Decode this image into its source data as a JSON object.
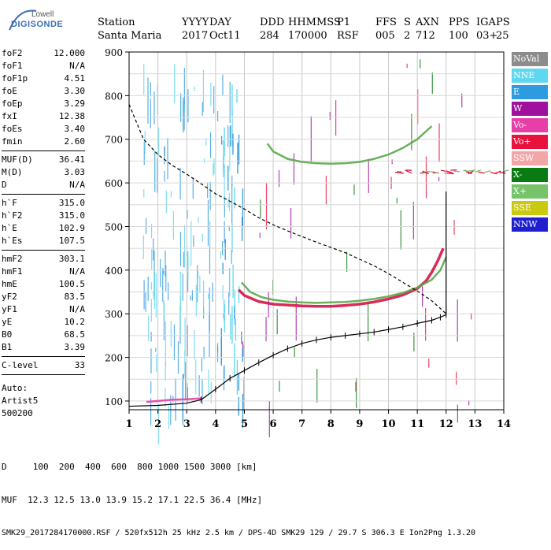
{
  "logo": {
    "brand": "Lowell",
    "product": "DIGISONDE"
  },
  "header": {
    "row1": [
      "Station",
      "YYYY",
      "DAY",
      "DDD",
      "HHMMSS",
      "P1",
      "FFS",
      "S",
      "AXN",
      "PPS",
      "IGA",
      "PS"
    ],
    "row2": [
      "Santa Maria",
      "2017",
      "Oct11",
      "284",
      "170000",
      "RSF",
      "005",
      "2",
      "712",
      "100",
      "03+",
      "25"
    ]
  },
  "params": {
    "g1": [
      {
        "label": "foF2",
        "value": "12.000"
      },
      {
        "label": "foF1",
        "value": "N/A"
      },
      {
        "label": "foF1p",
        "value": "4.51"
      },
      {
        "label": "foE",
        "value": "3.30"
      },
      {
        "label": "foEp",
        "value": "3.29"
      },
      {
        "label": "fxI",
        "value": "12.38"
      },
      {
        "label": "foEs",
        "value": "3.40"
      },
      {
        "label": "fmin",
        "value": "2.60"
      }
    ],
    "g2": [
      {
        "label": "MUF(D)",
        "value": "36.41"
      },
      {
        "label": "M(D)",
        "value": "3.03"
      },
      {
        "label": "D",
        "value": "N/A"
      }
    ],
    "g3": [
      {
        "label": "h`F",
        "value": "315.0"
      },
      {
        "label": "h`F2",
        "value": "315.0"
      },
      {
        "label": "h`E",
        "value": "102.9"
      },
      {
        "label": "h`Es",
        "value": "107.5"
      }
    ],
    "g4": [
      {
        "label": "hmF2",
        "value": "303.1"
      },
      {
        "label": "hmF1",
        "value": "N/A"
      },
      {
        "label": "hmE",
        "value": "100.5"
      },
      {
        "label": "yF2",
        "value": "83.5"
      },
      {
        "label": "yF1",
        "value": "N/A"
      },
      {
        "label": "yE",
        "value": "10.2"
      },
      {
        "label": "B0",
        "value": "68.5"
      },
      {
        "label": "B1",
        "value": "3.39"
      }
    ],
    "g5": [
      {
        "label": "C-level",
        "value": "33"
      }
    ]
  },
  "auto": {
    "line1": "Auto:",
    "line2": "Artist5",
    "line3": "500200"
  },
  "legend": [
    {
      "label": "NoVal",
      "color": "#8c8c8c"
    },
    {
      "label": "NNE",
      "color": "#5fd7f0"
    },
    {
      "label": "E",
      "color": "#2e9ae0"
    },
    {
      "label": "W",
      "color": "#a0109e"
    },
    {
      "label": "Vo-",
      "color": "#e83ea8"
    },
    {
      "label": "Vo+",
      "color": "#e8123c"
    },
    {
      "label": "SSW",
      "color": "#f2a6a6"
    },
    {
      "label": "X-",
      "color": "#0a7a12"
    },
    {
      "label": "X+",
      "color": "#76c36a"
    },
    {
      "label": "SSE",
      "color": "#c9c90f"
    },
    {
      "label": "NNW",
      "color": "#1f1fcf"
    }
  ],
  "footer": {
    "distances": "D     100  200  400  600  800 1000 1500 3000 [km]",
    "muf": "MUF  12.3 12.5 13.0 13.9 15.2 17.1 22.5 36.4 [MHz]",
    "file": "SMK29_2017284170000.RSF / 520fx512h 25 kHz 2.5 km / DPS-4D SMK29 129 / 29.7 S 306.3 E Ion2Png 1.3.20"
  },
  "chart_data": {
    "type": "scatter",
    "xlim": [
      1,
      14
    ],
    "ylim": [
      80,
      900
    ],
    "x_ticks": [
      1,
      2,
      3,
      4,
      5,
      6,
      7,
      8,
      9,
      10,
      11,
      12,
      13,
      14
    ],
    "y_ticks": [
      100,
      200,
      300,
      400,
      500,
      600,
      700,
      800,
      900
    ],
    "y_tick_labels": [
      "100",
      "200",
      "300",
      "400",
      "500",
      "600",
      "700",
      "800",
      "900"
    ],
    "x_tick_labels": [
      "1",
      "2",
      "3",
      "4",
      "5",
      "6",
      "7",
      "8",
      "9",
      "10",
      "11",
      "12",
      "13",
      "14"
    ],
    "grid": true,
    "profile_curve": {
      "x": [
        1.0,
        2.0,
        3.0,
        3.5,
        4.0,
        4.5,
        5.0,
        5.5,
        6.0,
        6.5,
        7.0,
        7.5,
        8.0,
        8.5,
        9.0,
        9.5,
        10.0,
        10.5,
        11.0,
        11.5,
        11.8,
        12.0
      ],
      "y": [
        88,
        90,
        95,
        103,
        127,
        152,
        170,
        188,
        205,
        220,
        232,
        240,
        246,
        250,
        254,
        258,
        264,
        270,
        278,
        285,
        292,
        298
      ]
    },
    "muf_curve": {
      "x": [
        1.0,
        1.5,
        2.0,
        2.5,
        3.0,
        3.5,
        4.0,
        4.5,
        5.0,
        5.5,
        6.0,
        6.5,
        7.0,
        7.5,
        8.0,
        8.5,
        9.0,
        9.5,
        10.0,
        10.5,
        11.0,
        11.5,
        12.0
      ],
      "y": [
        780,
        700,
        665,
        640,
        620,
        598,
        575,
        558,
        540,
        520,
        504,
        490,
        477,
        464,
        452,
        440,
        425,
        410,
        392,
        372,
        352,
        330,
        300
      ]
    },
    "traces": {
      "F_o": {
        "x": [
          4.8,
          5.0,
          5.5,
          6.0,
          6.5,
          7.0,
          7.5,
          8.0,
          8.5,
          9.0,
          9.5,
          10.0,
          10.5,
          11.0,
          11.3,
          11.5,
          11.7,
          11.9
        ],
        "y": [
          355,
          342,
          328,
          322,
          320,
          318,
          317,
          317,
          319,
          322,
          327,
          334,
          343,
          358,
          375,
          395,
          420,
          450
        ]
      },
      "F_x": {
        "x": [
          4.9,
          5.2,
          5.6,
          6.0,
          6.5,
          7.0,
          7.5,
          8.0,
          8.5,
          9.0,
          9.5,
          10.0,
          10.5,
          11.0,
          11.5,
          11.8,
          12.0
        ],
        "y": [
          372,
          350,
          338,
          332,
          328,
          326,
          325,
          326,
          327,
          330,
          334,
          340,
          348,
          360,
          378,
          400,
          430
        ]
      },
      "F2_hop": {
        "x": [
          5.8,
          6.0,
          6.5,
          7.0,
          7.5,
          8.0,
          8.5,
          9.0,
          9.5,
          10.0,
          10.5,
          11.0,
          11.5
        ],
        "y": [
          690,
          672,
          655,
          648,
          645,
          644,
          645,
          648,
          655,
          665,
          680,
          700,
          730
        ]
      },
      "sporadic_E": {
        "x": [
          1.6,
          2.0,
          2.5,
          3.0,
          3.5
        ],
        "y": [
          98,
          100,
          103,
          104,
          106
        ]
      }
    }
  }
}
